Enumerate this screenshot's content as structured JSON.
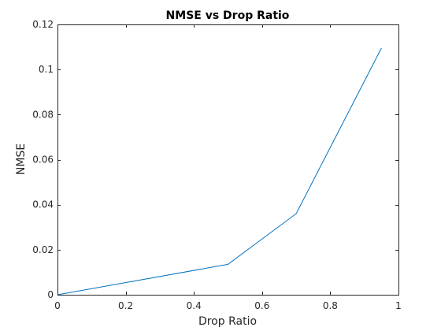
{
  "chart_data": {
    "type": "line",
    "title": "NMSE vs Drop Ratio",
    "xlabel": "Drop Ratio",
    "ylabel": "NMSE",
    "xlim": [
      0,
      1
    ],
    "ylim": [
      0,
      0.12
    ],
    "xticks": [
      0,
      0.2,
      0.4,
      0.6,
      0.8,
      1
    ],
    "xtick_labels": [
      "0",
      "0.2",
      "0.4",
      "0.6",
      "0.8",
      "1"
    ],
    "yticks": [
      0,
      0.02,
      0.04,
      0.06,
      0.08,
      0.1,
      0.12
    ],
    "ytick_labels": [
      "0",
      "0.02",
      "0.04",
      "0.06",
      "0.08",
      "0.1",
      "0.12"
    ],
    "grid": false,
    "series": [
      {
        "name": "NMSE",
        "color": "#0072bd",
        "x": [
          0,
          0.5,
          0.7,
          0.95
        ],
        "y": [
          0,
          0.0135,
          0.036,
          0.1095
        ]
      }
    ]
  }
}
